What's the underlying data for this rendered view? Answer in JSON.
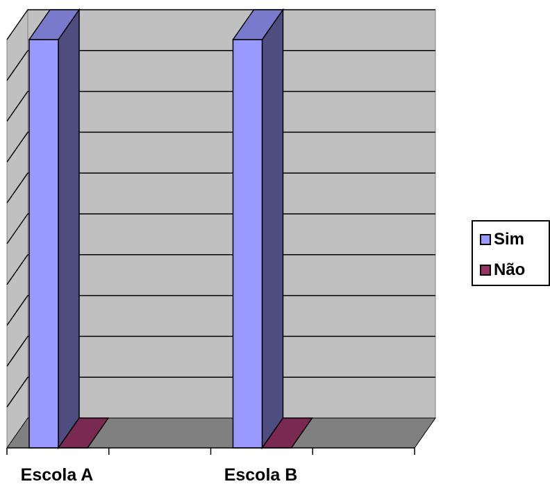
{
  "chart_data": {
    "type": "bar",
    "categories": [
      "Escola A",
      "Escola B"
    ],
    "series": [
      {
        "name": "Sim",
        "values": [
          10,
          10
        ],
        "color": "#9999FF",
        "side_color": "#4D4D80",
        "top_color": "#7A7ACC"
      },
      {
        "name": "Não",
        "values": [
          0,
          0
        ],
        "color": "#993366",
        "side_color": "#4D1A33",
        "top_color": "#7A2952"
      }
    ],
    "ylim": [
      0,
      10
    ],
    "y_gridlines": 10,
    "grid": true,
    "legend_position": "right",
    "three_d": true
  }
}
